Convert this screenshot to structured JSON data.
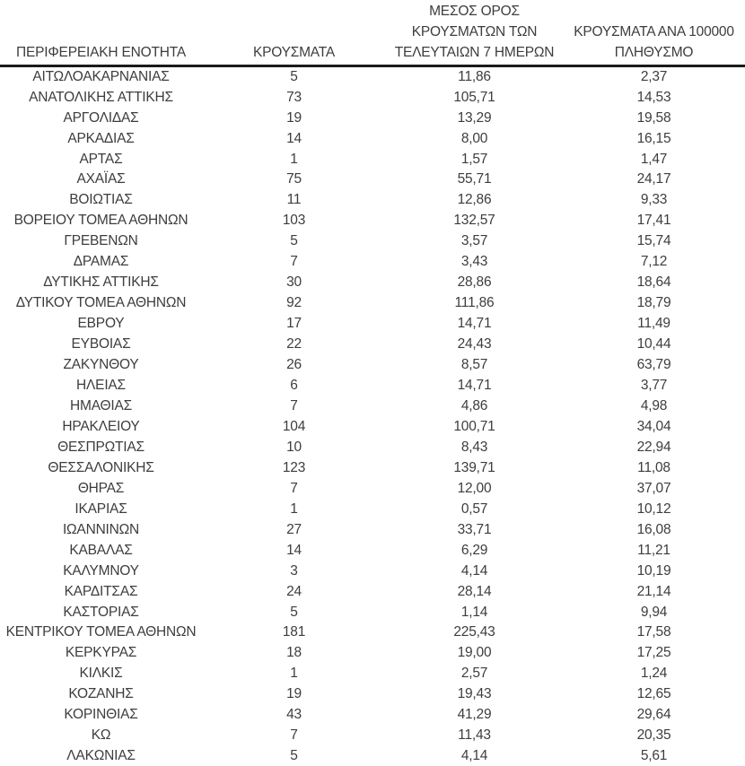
{
  "colors": {
    "background": "#ffffff",
    "text": "#3d3d3d",
    "header_rule": "#1a1a1a",
    "bottom_rule": "#a2aab4"
  },
  "table": {
    "columns": [
      {
        "key": "region",
        "label": "ΠΕΡΙΦΕΡΕΙΑΚΗ ΕΝΟΤΗΤΑ"
      },
      {
        "key": "cases",
        "label": "ΚΡΟΥΣΜΑΤΑ"
      },
      {
        "key": "avg7",
        "label": "ΜΕΣΟΣ ΟΡΟΣ\nΚΡΟΥΣΜΑΤΩΝ ΤΩΝ\nΤΕΛΕΥΤΑΙΩΝ 7 ΗΜΕΡΩΝ"
      },
      {
        "key": "per100k",
        "label": "ΚΡΟΥΣΜΑΤΑ ΑΝΑ 100000\nΠΛΗΘΥΣΜΟ"
      }
    ],
    "rows": [
      {
        "region": "ΑΙΤΩΛΟΑΚΑΡΝΑΝΙΑΣ",
        "cases": "5",
        "avg7": "11,86",
        "per100k": "2,37"
      },
      {
        "region": "ΑΝΑΤΟΛΙΚΗΣ ΑΤΤΙΚΗΣ",
        "cases": "73",
        "avg7": "105,71",
        "per100k": "14,53"
      },
      {
        "region": "ΑΡΓΟΛΙΔΑΣ",
        "cases": "19",
        "avg7": "13,29",
        "per100k": "19,58"
      },
      {
        "region": "ΑΡΚΑΔΙΑΣ",
        "cases": "14",
        "avg7": "8,00",
        "per100k": "16,15"
      },
      {
        "region": "ΑΡΤΑΣ",
        "cases": "1",
        "avg7": "1,57",
        "per100k": "1,47"
      },
      {
        "region": "ΑΧΑΪΑΣ",
        "cases": "75",
        "avg7": "55,71",
        "per100k": "24,17"
      },
      {
        "region": "ΒΟΙΩΤΙΑΣ",
        "cases": "11",
        "avg7": "12,86",
        "per100k": "9,33"
      },
      {
        "region": "ΒΟΡΕΙΟΥ ΤΟΜΕΑ ΑΘΗΝΩΝ",
        "cases": "103",
        "avg7": "132,57",
        "per100k": "17,41"
      },
      {
        "region": "ΓΡΕΒΕΝΩΝ",
        "cases": "5",
        "avg7": "3,57",
        "per100k": "15,74"
      },
      {
        "region": "ΔΡΑΜΑΣ",
        "cases": "7",
        "avg7": "3,43",
        "per100k": "7,12"
      },
      {
        "region": "ΔΥΤΙΚΗΣ ΑΤΤΙΚΗΣ",
        "cases": "30",
        "avg7": "28,86",
        "per100k": "18,64"
      },
      {
        "region": "ΔΥΤΙΚΟΥ ΤΟΜΕΑ ΑΘΗΝΩΝ",
        "cases": "92",
        "avg7": "111,86",
        "per100k": "18,79"
      },
      {
        "region": "ΕΒΡΟΥ",
        "cases": "17",
        "avg7": "14,71",
        "per100k": "11,49"
      },
      {
        "region": "ΕΥΒΟΙΑΣ",
        "cases": "22",
        "avg7": "24,43",
        "per100k": "10,44"
      },
      {
        "region": "ΖΑΚΥΝΘΟΥ",
        "cases": "26",
        "avg7": "8,57",
        "per100k": "63,79"
      },
      {
        "region": "ΗΛΕΙΑΣ",
        "cases": "6",
        "avg7": "14,71",
        "per100k": "3,77"
      },
      {
        "region": "ΗΜΑΘΙΑΣ",
        "cases": "7",
        "avg7": "4,86",
        "per100k": "4,98"
      },
      {
        "region": "ΗΡΑΚΛΕΙΟΥ",
        "cases": "104",
        "avg7": "100,71",
        "per100k": "34,04"
      },
      {
        "region": "ΘΕΣΠΡΩΤΙΑΣ",
        "cases": "10",
        "avg7": "8,43",
        "per100k": "22,94"
      },
      {
        "region": "ΘΕΣΣΑΛΟΝΙΚΗΣ",
        "cases": "123",
        "avg7": "139,71",
        "per100k": "11,08"
      },
      {
        "region": "ΘΗΡΑΣ",
        "cases": "7",
        "avg7": "12,00",
        "per100k": "37,07"
      },
      {
        "region": "ΙΚΑΡΙΑΣ",
        "cases": "1",
        "avg7": "0,57",
        "per100k": "10,12"
      },
      {
        "region": "ΙΩΑΝΝΙΝΩΝ",
        "cases": "27",
        "avg7": "33,71",
        "per100k": "16,08"
      },
      {
        "region": "ΚΑΒΑΛΑΣ",
        "cases": "14",
        "avg7": "6,29",
        "per100k": "11,21"
      },
      {
        "region": "ΚΑΛΥΜΝΟΥ",
        "cases": "3",
        "avg7": "4,14",
        "per100k": "10,19"
      },
      {
        "region": "ΚΑΡΔΙΤΣΑΣ",
        "cases": "24",
        "avg7": "28,14",
        "per100k": "21,14"
      },
      {
        "region": "ΚΑΣΤΟΡΙΑΣ",
        "cases": "5",
        "avg7": "1,14",
        "per100k": "9,94"
      },
      {
        "region": "ΚΕΝΤΡΙΚΟΥ ΤΟΜΕΑ ΑΘΗΝΩΝ",
        "cases": "181",
        "avg7": "225,43",
        "per100k": "17,58"
      },
      {
        "region": "ΚΕΡΚΥΡΑΣ",
        "cases": "18",
        "avg7": "19,00",
        "per100k": "17,25"
      },
      {
        "region": "ΚΙΛΚΙΣ",
        "cases": "1",
        "avg7": "2,57",
        "per100k": "1,24"
      },
      {
        "region": "ΚΟΖΑΝΗΣ",
        "cases": "19",
        "avg7": "19,43",
        "per100k": "12,65"
      },
      {
        "region": "ΚΟΡΙΝΘΙΑΣ",
        "cases": "43",
        "avg7": "41,29",
        "per100k": "29,64"
      },
      {
        "region": "ΚΩ",
        "cases": "7",
        "avg7": "11,43",
        "per100k": "20,35"
      },
      {
        "region": "ΛΑΚΩΝΙΑΣ",
        "cases": "5",
        "avg7": "4,14",
        "per100k": "5,61"
      }
    ]
  }
}
